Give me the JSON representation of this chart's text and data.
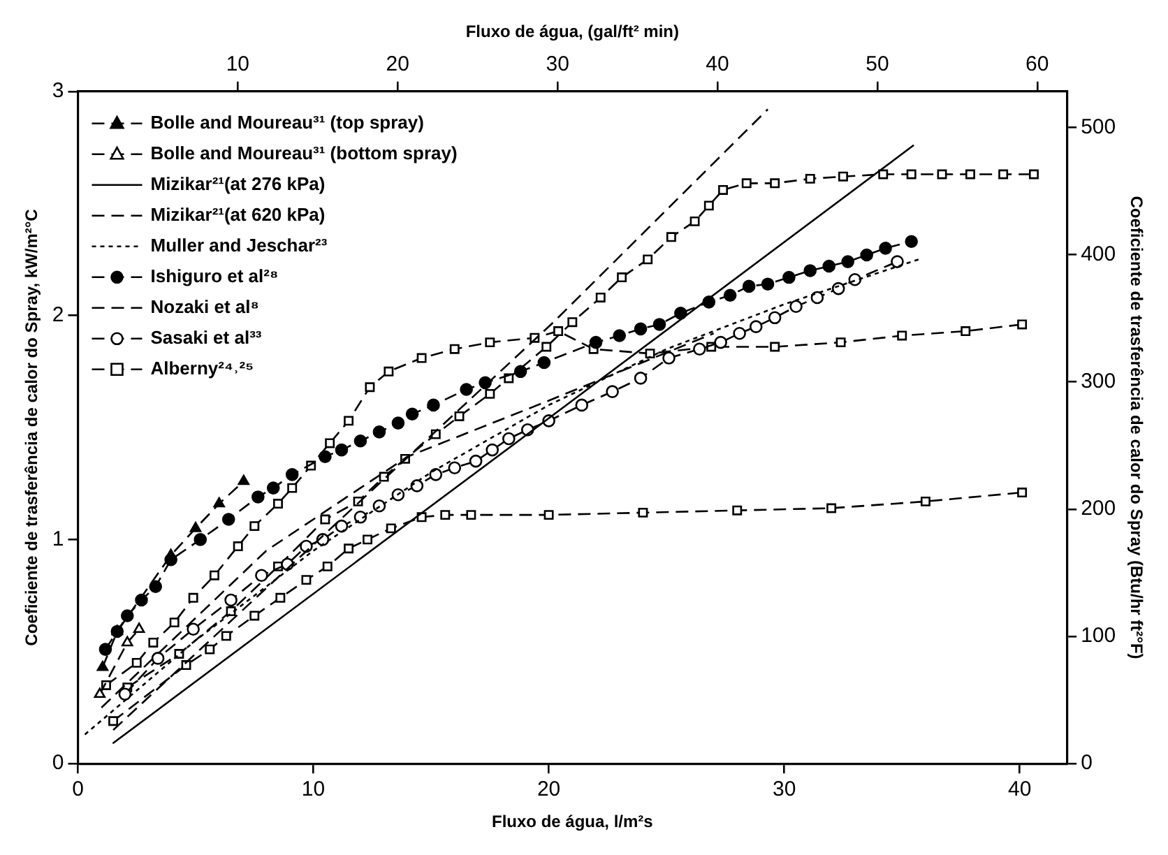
{
  "chart_data": {
    "type": "line",
    "xlabel": "Fluxo de água, l/m²s",
    "x2label": "Fluxo de água, (gal/ft² min)",
    "ylabel": "Coeficiente de trasferência de calor do Spray, kW/m²°C",
    "y2label": "Coeficiente de trasferência de calor do Spray (Btu/hr ft²°F)",
    "xlim": [
      0,
      42
    ],
    "xticks": [
      0,
      10,
      20,
      30,
      40
    ],
    "x2lim": [
      0,
      61.85
    ],
    "x2ticks": [
      10,
      20,
      30,
      40,
      50,
      60
    ],
    "ylim": [
      0,
      3
    ],
    "yticks": [
      0,
      1,
      2,
      3
    ],
    "y2lim": [
      0,
      528.3
    ],
    "y2ticks": [
      0,
      100,
      200,
      300,
      400,
      500
    ],
    "legend": "top left",
    "series": [
      {
        "name": "Bolle and Moureau³¹ (top spray)",
        "color": "#000000",
        "marker": "triangle",
        "line_style": "dashed",
        "x": [
          1.05,
          1.67,
          3.95,
          5.0,
          6.0,
          7.04
        ],
        "values": [
          0.43,
          0.59,
          0.93,
          1.05,
          1.16,
          1.26
        ]
      },
      {
        "name": "Bolle and Moureau³¹ (bottom spray)",
        "color": "#000000",
        "marker": "triangle",
        "line_style": "dashed",
        "x": [
          0.93,
          2.1,
          2.6
        ],
        "values": [
          0.31,
          0.54,
          0.6
        ],
        "colors": [
          "#ffffff",
          "#ffffff",
          "#ffffff"
        ]
      },
      {
        "name": "Mizikar²¹(at 276 kPa)",
        "color": "#000000",
        "marker": "none",
        "line_style": "solid",
        "x": [
          1.48,
          21,
          35.5
        ],
        "values": [
          0.09,
          1.62,
          2.76
        ]
      },
      {
        "name": "Mizikar²¹(at 620 kPa)",
        "color": "#000000",
        "marker": "none",
        "line_style": "dashed",
        "x": [
          1.5,
          20.2,
          29.3
        ],
        "values": [
          0.15,
          1.97,
          2.92
        ]
      },
      {
        "name": "Muller and Jeschar²³",
        "color": "#000000",
        "marker": "none",
        "line_style": "dotted",
        "x": [
          0.3,
          5,
          10,
          15,
          20,
          25,
          30,
          35.7
        ],
        "values": [
          0.13,
          0.55,
          0.95,
          1.3,
          1.6,
          1.85,
          2.05,
          2.25
        ]
      },
      {
        "name": "Ishiguro et al²⁸",
        "color": "#000000",
        "marker": "circle",
        "line_style": "dashed",
        "x": [
          1.17,
          1.67,
          2.1,
          2.7,
          3.3,
          3.95,
          5.2,
          6.4,
          7.65,
          8.3,
          9.1,
          10.5,
          11.2,
          12.0,
          12.8,
          13.6,
          14.2,
          15.1,
          16.5,
          17.3,
          18.8,
          19.8,
          22.0,
          23.0,
          23.9,
          24.7,
          25.6,
          26.8,
          27.7,
          28.5,
          29.3,
          30.2,
          31.1,
          31.9,
          32.7,
          33.5,
          34.3,
          35.4
        ],
        "values": [
          0.51,
          0.59,
          0.66,
          0.73,
          0.79,
          0.91,
          1.0,
          1.09,
          1.19,
          1.23,
          1.29,
          1.37,
          1.4,
          1.44,
          1.48,
          1.52,
          1.56,
          1.6,
          1.67,
          1.7,
          1.75,
          1.79,
          1.88,
          1.91,
          1.94,
          1.96,
          2.01,
          2.06,
          2.09,
          2.13,
          2.14,
          2.17,
          2.2,
          2.22,
          2.24,
          2.27,
          2.3,
          2.33
        ]
      },
      {
        "name": "Nozaki et al⁸",
        "color": "#000000",
        "marker": "none",
        "line_style": "dashed",
        "x": [
          1,
          8,
          14,
          20,
          27
        ],
        "values": [
          0.25,
          0.95,
          1.37,
          1.62,
          1.92
        ]
      },
      {
        "name": "Sasaki et al³³",
        "color": "#000000",
        "marker": "circle",
        "line_style": "dashed",
        "x": [
          2.0,
          3.4,
          4.9,
          6.5,
          7.8,
          8.9,
          9.7,
          10.4,
          11.2,
          12.0,
          12.8,
          13.6,
          14.4,
          15.2,
          16.0,
          16.9,
          17.6,
          18.3,
          19.1,
          20.0,
          21.4,
          22.7,
          23.9,
          25.1,
          26.4,
          27.3,
          28.1,
          28.8,
          29.6,
          30.5,
          31.4,
          32.3,
          33.0,
          34.8
        ],
        "values": [
          0.31,
          0.47,
          0.6,
          0.73,
          0.84,
          0.89,
          0.97,
          1.0,
          1.06,
          1.1,
          1.15,
          1.2,
          1.24,
          1.29,
          1.32,
          1.35,
          1.4,
          1.45,
          1.49,
          1.53,
          1.6,
          1.66,
          1.72,
          1.81,
          1.85,
          1.88,
          1.92,
          1.95,
          1.99,
          2.04,
          2.08,
          2.12,
          2.16,
          2.24
        ],
        "colors": [
          "#ffffff",
          "#ffffff",
          "#ffffff",
          "#ffffff",
          "#ffffff",
          "#ffffff",
          "#ffffff",
          "#ffffff",
          "#ffffff",
          "#ffffff",
          "#ffffff",
          "#ffffff",
          "#ffffff",
          "#ffffff",
          "#ffffff",
          "#ffffff",
          "#ffffff",
          "#ffffff",
          "#ffffff",
          "#ffffff",
          "#ffffff",
          "#ffffff",
          "#ffffff",
          "#ffffff",
          "#ffffff",
          "#ffffff",
          "#ffffff",
          "#ffffff",
          "#ffffff",
          "#ffffff",
          "#ffffff",
          "#ffffff",
          "#ffffff",
          "#ffffff"
        ]
      },
      {
        "name": "Alberny²⁴˒²⁵",
        "color": "#000000",
        "marker": "square",
        "line_style": "dashed",
        "x": [
          1.2,
          2.5,
          3.2,
          4.1,
          4.9,
          5.8,
          6.8,
          7.5,
          8.5,
          9.1,
          9.9,
          10.7,
          11.5,
          12.4,
          13.2,
          14.6,
          16.0,
          17.5,
          19.4,
          20.4,
          21.9,
          24.3,
          26.9,
          29.6,
          32.4,
          35.0,
          37.7,
          40.1
        ],
        "values": [
          0.35,
          0.45,
          0.54,
          0.63,
          0.74,
          0.84,
          0.97,
          1.06,
          1.16,
          1.23,
          1.33,
          1.43,
          1.53,
          1.68,
          1.75,
          1.81,
          1.85,
          1.88,
          1.9,
          1.93,
          1.85,
          1.83,
          1.86,
          1.86,
          1.88,
          1.91,
          1.93,
          1.96
        ],
        "colors": [
          "#ffffff",
          "#ffffff",
          "#ffffff",
          "#ffffff",
          "#ffffff",
          "#ffffff",
          "#ffffff",
          "#ffffff",
          "#ffffff",
          "#ffffff",
          "#ffffff",
          "#ffffff",
          "#ffffff",
          "#ffffff",
          "#ffffff",
          "#ffffff",
          "#ffffff",
          "#ffffff",
          "#ffffff",
          "#ffffff",
          "#ffffff",
          "#ffffff",
          "#ffffff",
          "#ffffff",
          "#ffffff",
          "#ffffff",
          "#ffffff",
          "#ffffff"
        ]
      },
      {
        "color": "#000000",
        "marker": "square",
        "line_style": "dashed",
        "x": [
          2.1,
          4.3,
          6.5,
          8.5,
          10.5,
          11.9,
          13.0,
          13.9,
          15.2,
          16.2,
          17.5,
          18.3,
          19.9,
          21.0,
          22.2,
          23.1,
          24.2,
          25.2,
          26.2,
          26.8,
          27.4,
          28.4,
          29.6,
          31.1,
          32.5,
          34.2,
          35.4,
          36.7,
          37.9,
          39.3,
          40.6
        ],
        "values": [
          0.34,
          0.49,
          0.68,
          0.88,
          1.09,
          1.17,
          1.28,
          1.36,
          1.47,
          1.55,
          1.65,
          1.72,
          1.86,
          1.97,
          2.08,
          2.17,
          2.25,
          2.35,
          2.42,
          2.49,
          2.56,
          2.59,
          2.59,
          2.61,
          2.62,
          2.63,
          2.63,
          2.63,
          2.63,
          2.63,
          2.63
        ],
        "colors": [
          "#ffffff",
          "#ffffff",
          "#ffffff",
          "#ffffff",
          "#ffffff",
          "#ffffff",
          "#ffffff",
          "#ffffff",
          "#ffffff",
          "#ffffff",
          "#ffffff",
          "#ffffff",
          "#ffffff",
          "#ffffff",
          "#ffffff",
          "#ffffff",
          "#ffffff",
          "#ffffff",
          "#ffffff",
          "#ffffff",
          "#ffffff",
          "#ffffff",
          "#ffffff",
          "#ffffff",
          "#ffffff",
          "#ffffff",
          "#ffffff",
          "#ffffff",
          "#ffffff",
          "#ffffff",
          "#ffffff"
        ]
      },
      {
        "color": "#000000",
        "marker": "square",
        "line_style": "dashed",
        "x": [
          1.5,
          4.6,
          5.6,
          6.3,
          7.5,
          8.6,
          9.7,
          10.6,
          11.5,
          12.3,
          13.3,
          14.6,
          15.6,
          16.7,
          20,
          24,
          28,
          32,
          36,
          40.1
        ],
        "values": [
          0.19,
          0.44,
          0.51,
          0.57,
          0.66,
          0.74,
          0.82,
          0.88,
          0.96,
          1.0,
          1.05,
          1.1,
          1.11,
          1.11,
          1.11,
          1.12,
          1.13,
          1.14,
          1.17,
          1.21
        ],
        "colors": [
          "#ffffff",
          "#ffffff",
          "#ffffff",
          "#ffffff",
          "#ffffff",
          "#ffffff",
          "#ffffff",
          "#ffffff",
          "#ffffff",
          "#ffffff",
          "#ffffff",
          "#ffffff",
          "#ffffff",
          "#ffffff",
          "#ffffff",
          "#ffffff",
          "#ffffff",
          "#ffffff",
          "#ffffff",
          "#ffffff"
        ]
      }
    ]
  }
}
